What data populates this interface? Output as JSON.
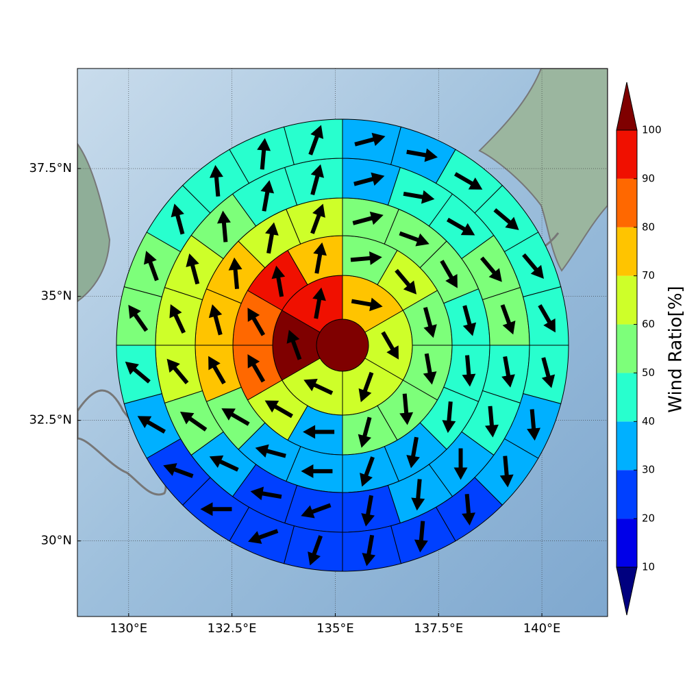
{
  "chart_data": {
    "type": "polar_grid_map",
    "projection": "mercator",
    "grid": true,
    "xlim": [
      128.76,
      141.59
    ],
    "ylim": [
      28.4,
      39.4
    ],
    "xticks": [
      {
        "value": 130,
        "label": "130°E"
      },
      {
        "value": 132.5,
        "label": "132.5°E"
      },
      {
        "value": 135,
        "label": "135°E"
      },
      {
        "value": 137.5,
        "label": "137.5°E"
      },
      {
        "value": 140,
        "label": "140°E"
      }
    ],
    "yticks": [
      {
        "value": 30,
        "label": "30°N"
      },
      {
        "value": 32.5,
        "label": "32.5°N"
      },
      {
        "value": 35,
        "label": "35°N"
      },
      {
        "value": 37.5,
        "label": "37.5°N"
      }
    ],
    "colorbar": {
      "label": "Wind Ratio[%]",
      "levels": [
        10,
        20,
        30,
        40,
        50,
        60,
        70,
        80,
        90,
        100
      ],
      "colors": [
        "#0000e8",
        "#0040ff",
        "#00b0ff",
        "#28ffce",
        "#7dff7a",
        "#ceff29",
        "#ffc400",
        "#ff6800",
        "#f01000"
      ],
      "under_color": "#00007f",
      "over_color": "#7f0000"
    },
    "center": {
      "value": 105
    },
    "rings": [
      {
        "values": [
          75,
          65,
          65,
          65,
          105,
          95
        ],
        "directions": [
          100,
          150,
          200,
          295,
          340,
          10
        ]
      },
      {
        "values": [
          55,
          65,
          55,
          55,
          55,
          50,
          35,
          65,
          85,
          85,
          95,
          75
        ],
        "directions": [
          85,
          140,
          165,
          170,
          175,
          195,
          270,
          300,
          330,
          330,
          350,
          10
        ]
      },
      {
        "values": [
          55,
          55,
          55,
          45,
          45,
          45,
          35,
          35,
          35,
          35,
          55,
          75,
          75,
          75,
          65,
          65
        ],
        "directions": [
          75,
          110,
          150,
          165,
          175,
          185,
          190,
          200,
          270,
          285,
          300,
          330,
          345,
          355,
          10,
          20
        ]
      },
      {
        "values": [
          35,
          45,
          45,
          55,
          55,
          45,
          45,
          35,
          35,
          25,
          25,
          25,
          35,
          55,
          65,
          65,
          65,
          55,
          45,
          45
        ],
        "directions": [
          75,
          100,
          120,
          140,
          160,
          170,
          175,
          180,
          185,
          190,
          250,
          280,
          295,
          305,
          320,
          335,
          345,
          355,
          10,
          15
        ]
      },
      {
        "values": [
          35,
          35,
          45,
          45,
          45,
          45,
          45,
          35,
          35,
          25,
          25,
          25,
          25,
          25,
          25,
          25,
          35,
          45,
          55,
          55,
          45,
          45,
          45,
          45
        ],
        "directions": [
          75,
          100,
          120,
          130,
          140,
          150,
          165,
          175,
          175,
          175,
          185,
          190,
          200,
          250,
          270,
          290,
          300,
          310,
          325,
          340,
          345,
          355,
          5,
          20
        ]
      }
    ]
  }
}
